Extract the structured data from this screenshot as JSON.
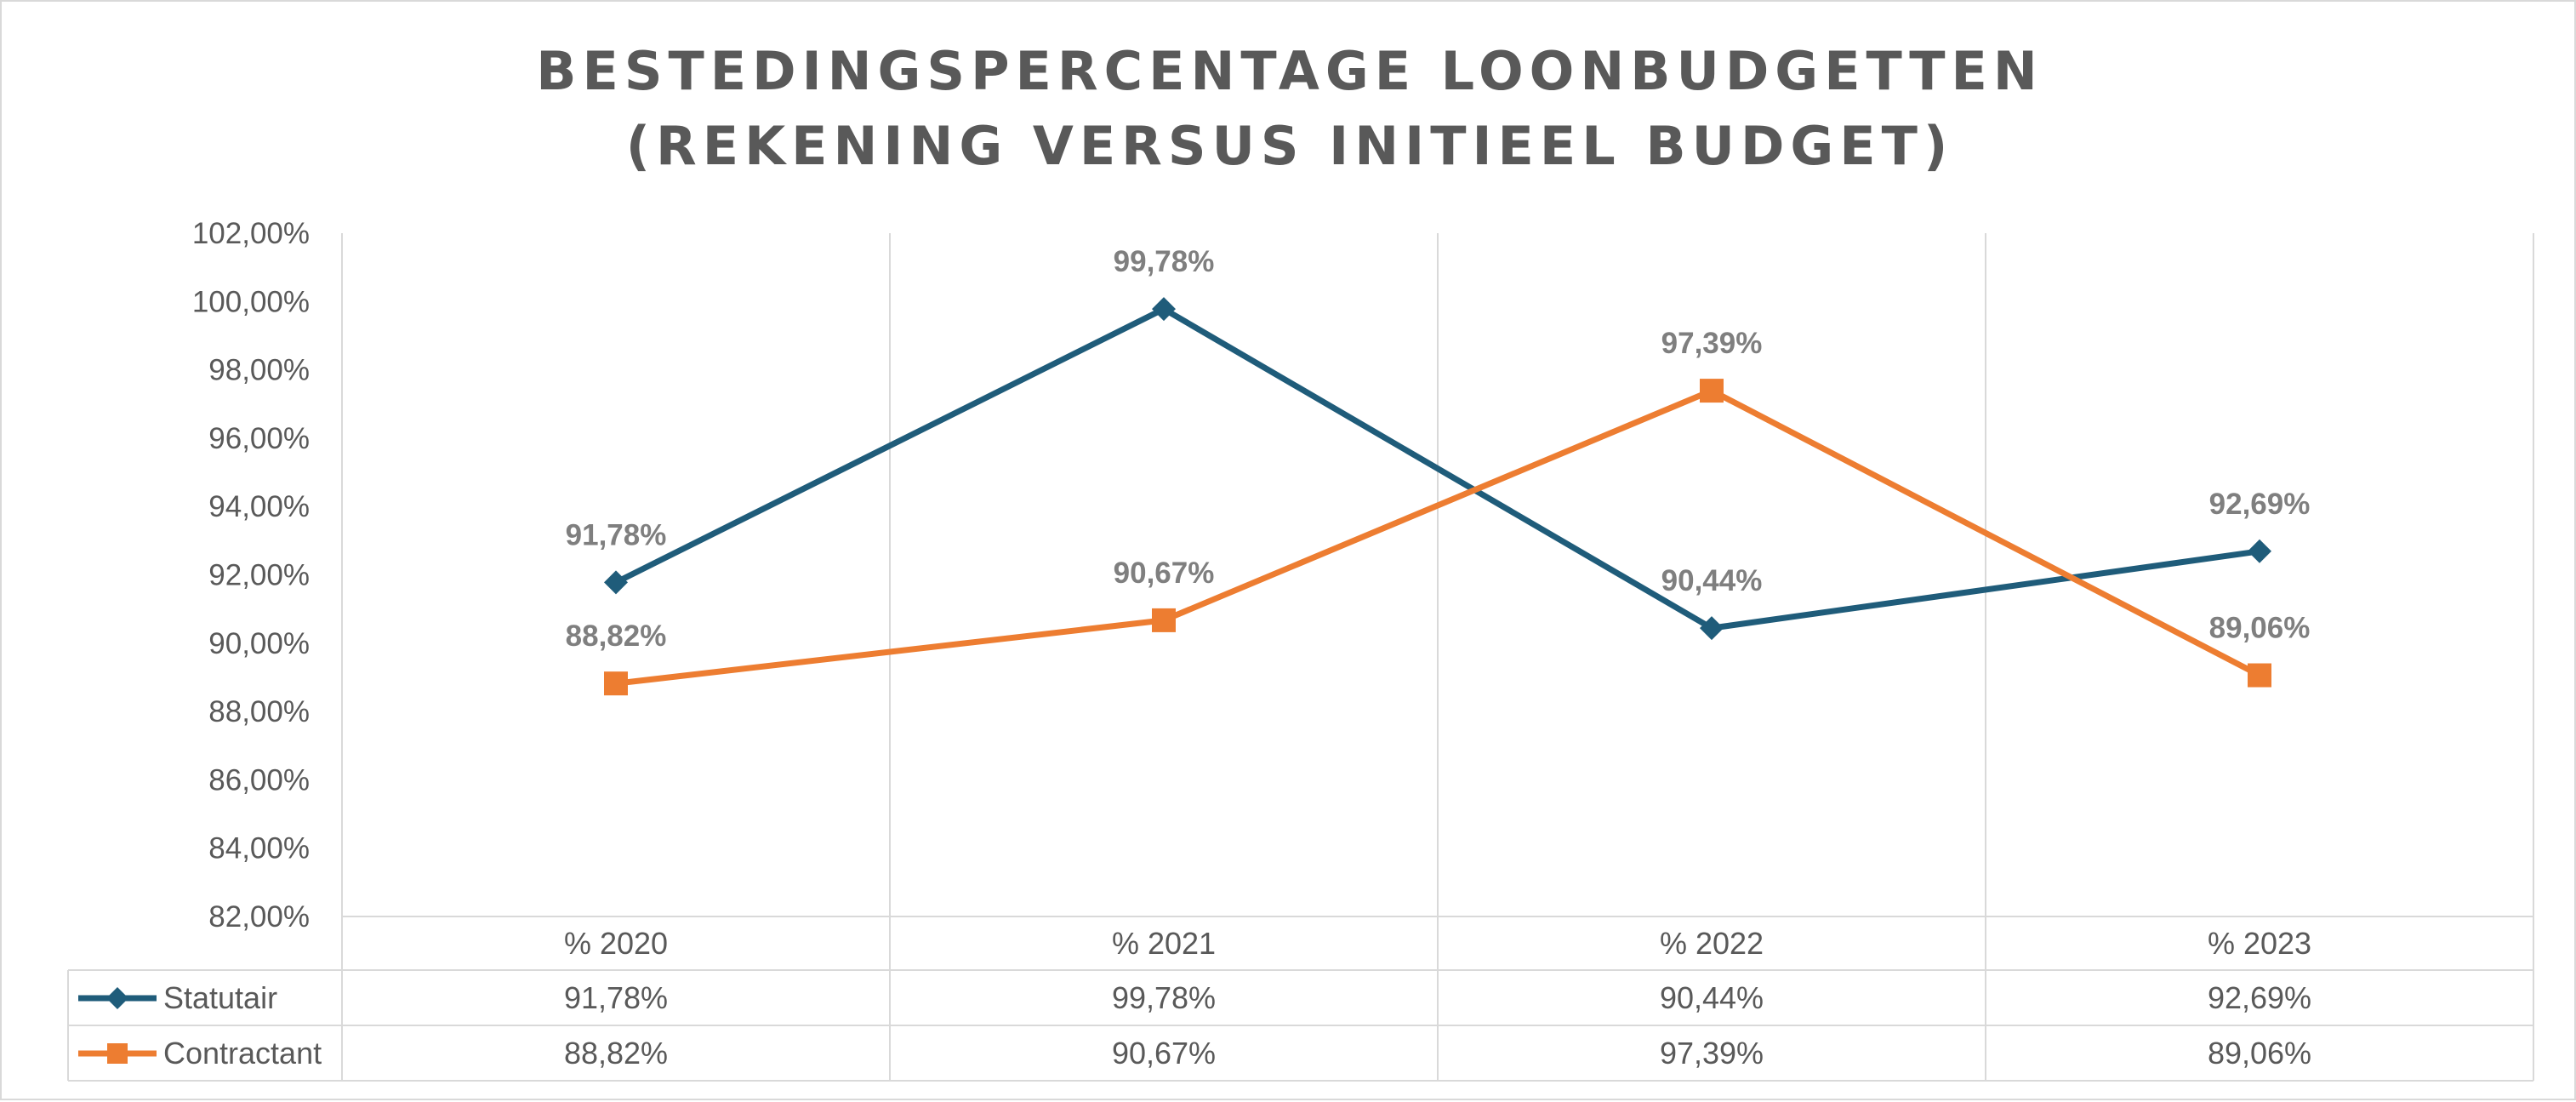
{
  "chart_data": {
    "type": "line",
    "title": [
      "BESTEDINGSPERCENTAGE LOONBUDGETTEN",
      "(REKENING VERSUS INITIEEL BUDGET)"
    ],
    "categories": [
      "% 2020",
      "% 2021",
      "% 2022",
      "% 2023"
    ],
    "ylim": [
      82,
      102
    ],
    "yticks": [
      "102,00%",
      "100,00%",
      "98,00%",
      "96,00%",
      "94,00%",
      "92,00%",
      "90,00%",
      "88,00%",
      "86,00%",
      "84,00%",
      "82,00%"
    ],
    "ytick_values": [
      102,
      100,
      98,
      96,
      94,
      92,
      90,
      88,
      86,
      84,
      82
    ],
    "grid": "vertical",
    "legend": "data-table",
    "series": [
      {
        "name": "Statutair",
        "color": "#1f5c7a",
        "marker": "diamond",
        "values": [
          91.78,
          99.78,
          90.44,
          92.69
        ],
        "labels": [
          "91,78%",
          "99,78%",
          "90,44%",
          "92,69%"
        ]
      },
      {
        "name": "Contractant",
        "color": "#ed7d31",
        "marker": "square",
        "values": [
          88.82,
          90.67,
          97.39,
          89.06
        ],
        "labels": [
          "88,82%",
          "90,67%",
          "97,39%",
          "89,06%"
        ]
      }
    ]
  }
}
